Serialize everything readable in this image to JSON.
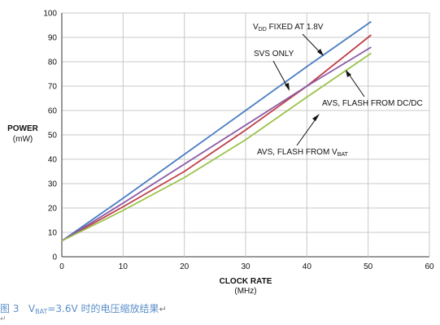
{
  "chart_data": {
    "type": "line",
    "xlabel": "CLOCK RATE",
    "xunit": "(MHz)",
    "ylabel": "POWER",
    "yunit": "(mW)",
    "xlim": [
      0,
      60
    ],
    "ylim": [
      0,
      100
    ],
    "xticks": [
      0,
      10,
      20,
      30,
      40,
      50,
      60
    ],
    "yticks": [
      0,
      10,
      20,
      30,
      40,
      50,
      60,
      70,
      80,
      90,
      100
    ],
    "grid": true,
    "series": [
      {
        "name": "VDD FIXED AT 1.8V",
        "color": "#4a7dc4",
        "x": [
          0,
          10,
          20,
          30,
          40,
          50.5
        ],
        "y": [
          6.5,
          24,
          42,
          60,
          78,
          96.5
        ]
      },
      {
        "name": "SVS ONLY",
        "color": "#c0404a",
        "x": [
          0,
          10,
          20,
          30,
          40,
          50.5
        ],
        "y": [
          6.5,
          20.5,
          35,
          52,
          70,
          91
        ]
      },
      {
        "name": "AVS, FLASH FROM DC/DC",
        "color": "#8a5aa6",
        "x": [
          0,
          10,
          20,
          30,
          40,
          50.5
        ],
        "y": [
          6.5,
          22,
          38,
          54,
          70,
          86
        ]
      },
      {
        "name": "AVS, FLASH FROM VBAT",
        "color": "#9cc24a",
        "x": [
          0,
          10,
          20,
          30,
          40,
          50.5
        ],
        "y": [
          6.5,
          19,
          32.5,
          48,
          65.5,
          83.5
        ]
      }
    ],
    "annotations": {
      "vdd": {
        "pre": "V",
        "sub": "DD",
        "post": " FIXED AT 1.8V"
      },
      "svs": {
        "text": "SVS ONLY"
      },
      "dcdc": {
        "text": "AVS, FLASH FROM DC/DC"
      },
      "vbat": {
        "pre": "AVS, FLASH FROM V",
        "sub": "BAT",
        "post": ""
      }
    }
  },
  "caption": {
    "figure": "图 3",
    "v": "V",
    "sub": "BAT",
    "rest": "=3.6V 时的电压缩放结果",
    "mark": "↵"
  },
  "line_mark": "↵"
}
